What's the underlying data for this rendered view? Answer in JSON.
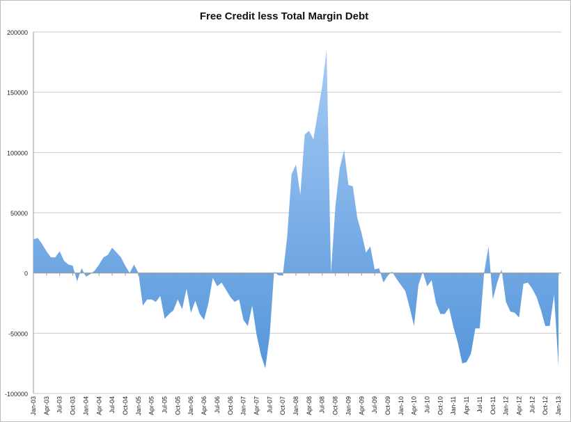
{
  "chart_data": {
    "type": "area",
    "title": "Free Credit less Total Margin Debt",
    "xlabel": "",
    "ylabel": "",
    "ylim": [
      -100000,
      200000
    ],
    "yticks": [
      -100000,
      -50000,
      0,
      50000,
      100000,
      150000,
      200000
    ],
    "ytick_labels": [
      "-100000",
      "-50000",
      "0",
      "50000",
      "100000",
      "150000",
      "200000"
    ],
    "grid": true,
    "legend": "none",
    "fill_color_top": "#a6cbf5",
    "fill_color_bottom": "#5696da",
    "start_month": "Jan-03",
    "xtick_labels": [
      "Jan-03",
      "Apr-03",
      "Jul-03",
      "Oct-03",
      "Jan-04",
      "Apr-04",
      "Jul-04",
      "Oct-04",
      "Jan-05",
      "Apr-05",
      "Jul-05",
      "Oct-05",
      "Jan-06",
      "Apr-06",
      "Jul-06",
      "Oct-06",
      "Jan-07",
      "Apr-07",
      "Jul-07",
      "Oct-07",
      "Jan-08",
      "Apr-08",
      "Jul-08",
      "Oct-08",
      "Jan-09",
      "Apr-09",
      "Jul-09",
      "Oct-09",
      "Jan-10",
      "Apr-10",
      "Jul-10",
      "Oct-10",
      "Jan-11",
      "Apr-11",
      "Jul-11",
      "Oct-11",
      "Jan-12",
      "Apr-12",
      "Jul-12",
      "Oct-12",
      "Jan-13"
    ],
    "values": [
      28000,
      29000,
      24000,
      18000,
      13000,
      13000,
      18000,
      10000,
      7000,
      6000,
      -7000,
      4000,
      -3000,
      -1000,
      2000,
      7000,
      13000,
      15000,
      21000,
      17000,
      13000,
      6000,
      0,
      7000,
      0,
      -27000,
      -22000,
      -22000,
      -24000,
      -19000,
      -38000,
      -34000,
      -31000,
      -22000,
      -30000,
      -13000,
      -33000,
      -23000,
      -34000,
      -39000,
      -25000,
      -4000,
      -11000,
      -8000,
      -14000,
      -20000,
      -24000,
      -22000,
      -39000,
      -44000,
      -27000,
      -51000,
      -68000,
      -79000,
      -52000,
      1000,
      -2000,
      -2000,
      30000,
      82000,
      90000,
      65000,
      115000,
      118000,
      111000,
      133000,
      155000,
      185000,
      0,
      55000,
      87000,
      102000,
      73000,
      72000,
      46000,
      33000,
      17000,
      22000,
      3000,
      4000,
      -8000,
      -2000,
      1000,
      -5000,
      -10000,
      -15000,
      -29000,
      -44000,
      -10000,
      1000,
      -11000,
      -6000,
      -25000,
      -34000,
      -34000,
      -29000,
      -45000,
      -58000,
      -75000,
      -74000,
      -67000,
      -46000,
      -46000,
      0,
      22000,
      -22000,
      -8000,
      3000,
      -24000,
      -32000,
      -33000,
      -37000,
      -9000,
      -8000,
      -13000,
      -20000,
      -31000,
      -44000,
      -44000,
      -18000,
      -77000
    ]
  }
}
